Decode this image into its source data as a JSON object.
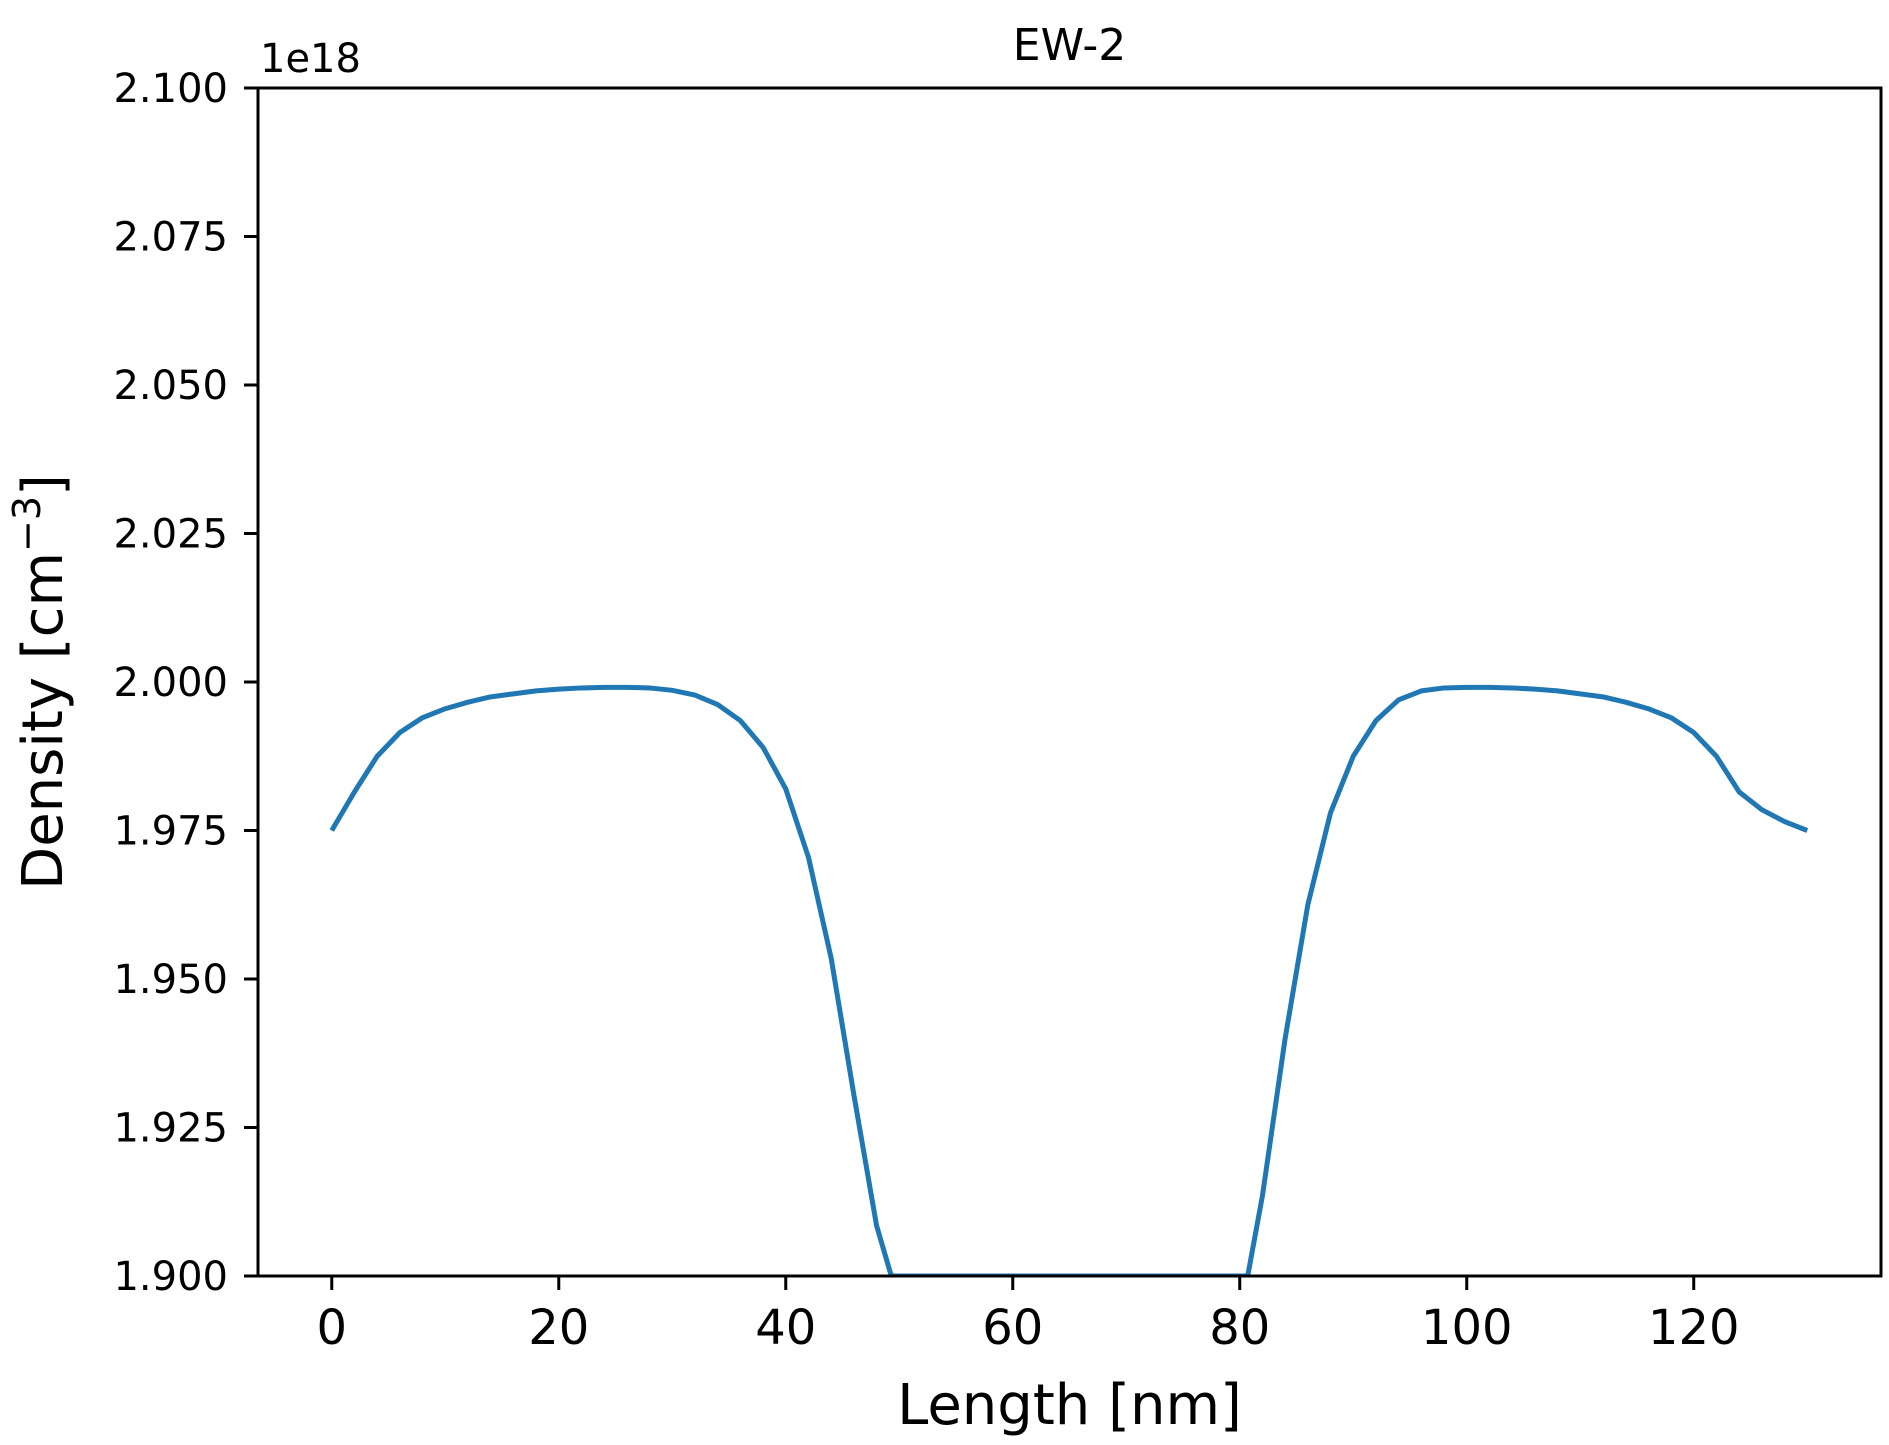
{
  "chart_data": {
    "type": "line",
    "title": "EW-2",
    "xlabel": "Length [nm]",
    "ylabel_main": "Density [cm",
    "ylabel_sup": "−3",
    "ylabel_close": "]",
    "y_offset_label": "1e18",
    "xlim": [
      -6.5,
      136.5
    ],
    "ylim": [
      1.9,
      2.1
    ],
    "y_scale_factor": "1e18",
    "grid": false,
    "line_color": "#1f77b4",
    "x_ticks": [
      0,
      20,
      40,
      60,
      80,
      100,
      120
    ],
    "x_tick_labels": [
      "0",
      "20",
      "40",
      "60",
      "80",
      "100",
      "120"
    ],
    "y_ticks": [
      1.9,
      1.925,
      1.95,
      1.975,
      2.0,
      2.025,
      2.05,
      2.075,
      2.1
    ],
    "y_tick_labels": [
      "1.900",
      "1.925",
      "1.950",
      "1.975",
      "2.000",
      "2.025",
      "2.050",
      "2.075",
      "2.100"
    ],
    "series": [
      {
        "x": [
          0,
          2,
          4,
          6,
          8,
          10,
          12,
          14,
          16,
          18,
          20,
          22,
          24,
          26,
          28,
          30,
          32,
          34,
          36,
          38,
          40,
          42,
          44,
          46,
          48,
          49.3,
          80.7,
          82,
          84,
          86,
          88,
          90,
          92,
          94,
          96,
          98,
          100,
          102,
          104,
          106,
          108,
          110,
          112,
          114,
          116,
          118,
          120,
          122,
          124,
          126,
          128,
          130
        ],
        "y": [
          1.975,
          1.9815,
          1.9875,
          1.9915,
          1.994,
          1.9955,
          1.9966,
          1.9975,
          1.998,
          1.9985,
          1.9988,
          1.999,
          1.9991,
          1.9991,
          1.999,
          1.9986,
          1.9978,
          1.9962,
          1.9935,
          1.989,
          1.982,
          1.9705,
          1.9535,
          1.9305,
          1.9085,
          1.9,
          1.9,
          1.9135,
          1.94,
          1.9625,
          1.978,
          1.9875,
          1.9935,
          1.997,
          1.9985,
          1.999,
          1.9991,
          1.9991,
          1.999,
          1.9988,
          1.9985,
          1.998,
          1.9975,
          1.9966,
          1.9955,
          1.994,
          1.9915,
          1.9875,
          1.9815,
          1.9785,
          1.9765,
          1.975
        ]
      }
    ]
  }
}
